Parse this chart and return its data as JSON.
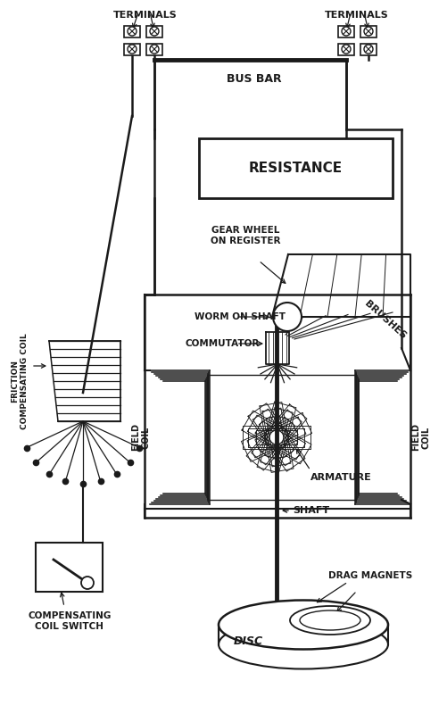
{
  "bg_color": "#ffffff",
  "line_color": "#1a1a1a",
  "fig_width": 5.02,
  "fig_height": 8.0,
  "dpi": 100,
  "labels": {
    "terminals_left": "TERMINALS",
    "terminals_right": "TERMINALS",
    "bus_bar": "BUS BAR",
    "resistance": "RESISTANCE",
    "gear_wheel": "GEAR WHEEL\nON REGISTER",
    "worm_on_shaft": "WORM ON SHAFT",
    "commutator": "COMMUTATOR",
    "brushes": "BRUSHES",
    "field_coil": "FIELD\nCOIL",
    "armature": "ARMATURE",
    "shaft": "SHAFT",
    "drag_magnets": "DRAG MAGNETS",
    "disc": "DISC",
    "friction_comp_coil": "FRICTION\nCOMPENSATING COIL",
    "comp_coil_switch": "COMPENSATING\nCOIL SWITCH"
  }
}
